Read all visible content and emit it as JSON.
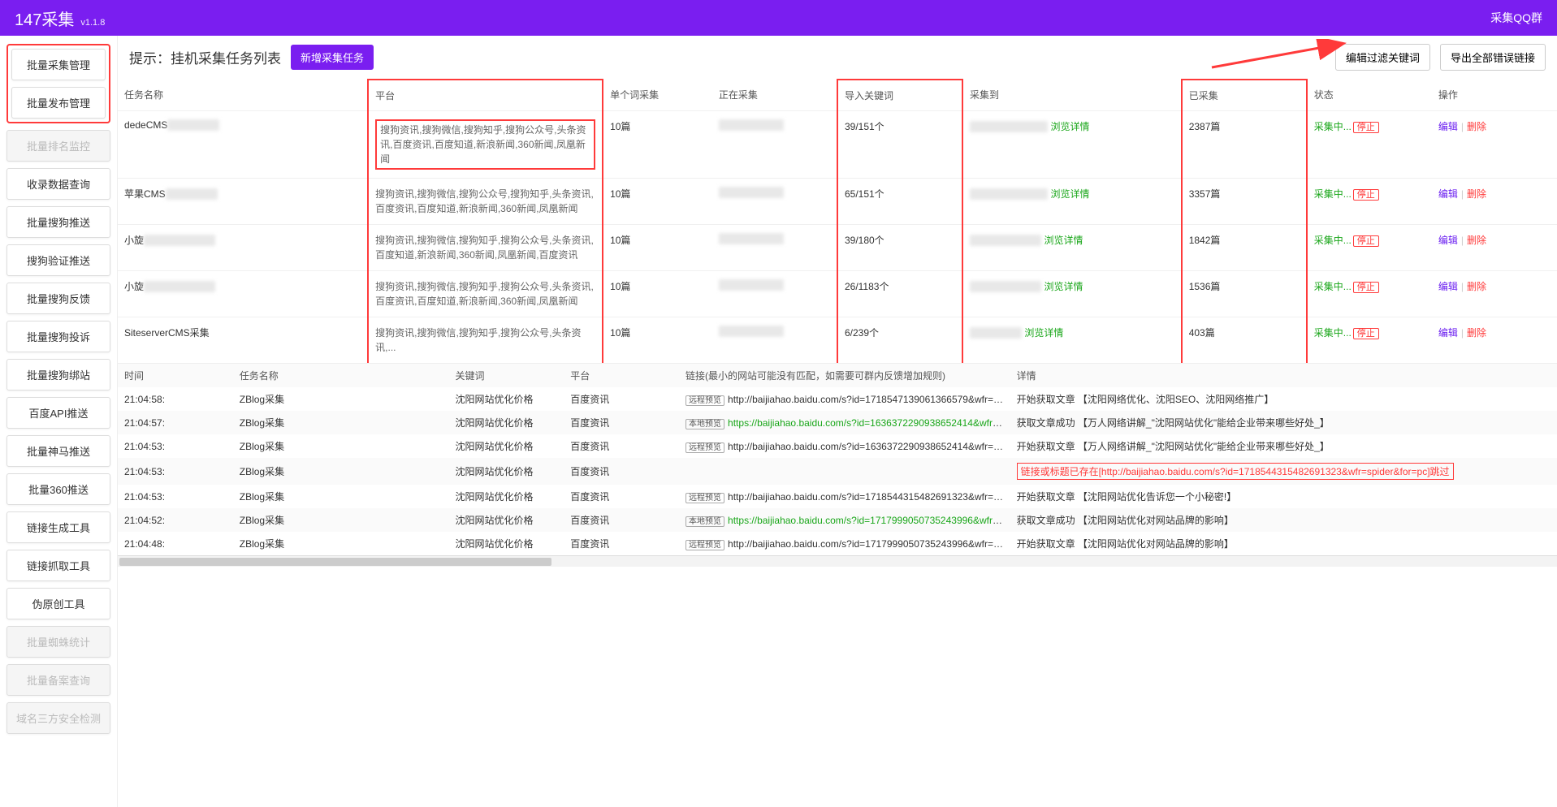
{
  "header": {
    "title": "147采集",
    "version": "v1.1.8",
    "right_link": "采集QQ群"
  },
  "sidebar": {
    "highlighted": [
      "批量采集管理",
      "批量发布管理"
    ],
    "items": [
      {
        "label": "批量排名监控",
        "disabled": true
      },
      {
        "label": "收录数据查询",
        "disabled": false
      },
      {
        "label": "批量搜狗推送",
        "disabled": false
      },
      {
        "label": "搜狗验证推送",
        "disabled": false
      },
      {
        "label": "批量搜狗反馈",
        "disabled": false
      },
      {
        "label": "批量搜狗投诉",
        "disabled": false
      },
      {
        "label": "批量搜狗绑站",
        "disabled": false
      },
      {
        "label": "百度API推送",
        "disabled": false
      },
      {
        "label": "批量神马推送",
        "disabled": false
      },
      {
        "label": "批量360推送",
        "disabled": false
      },
      {
        "label": "链接生成工具",
        "disabled": false
      },
      {
        "label": "链接抓取工具",
        "disabled": false
      },
      {
        "label": "伪原创工具",
        "disabled": false
      },
      {
        "label": "批量蜘蛛统计",
        "disabled": true
      },
      {
        "label": "批量备案查询",
        "disabled": true
      },
      {
        "label": "域名三方安全检测",
        "disabled": true
      }
    ]
  },
  "toolbar": {
    "title": "提示：挂机采集任务列表",
    "new_task": "新增采集任务",
    "filter_btn": "编辑过滤关键词",
    "export_btn": "导出全部错误链接"
  },
  "top_table": {
    "columns": [
      "任务名称",
      "平台",
      "单个词采集",
      "正在采集",
      "导入关键词",
      "采集到",
      "已采集",
      "状态",
      "操作"
    ],
    "col_widths": [
      "16%",
      "15%",
      "7%",
      "8%",
      "8%",
      "14%",
      "8%",
      "8%",
      "8%"
    ],
    "highlight_cols": [
      1,
      4,
      6
    ],
    "rows": [
      {
        "name": "dedeCMS",
        "name_blur": "XXXXXXXX",
        "platform": "搜狗资讯,搜狗微信,搜狗知乎,搜狗公众号,头条资讯,百度资讯,百度知道,新浪新闻,360新闻,凤凰新闻",
        "single": "10篇",
        "doing_blur": "XXXXXXXXXX",
        "keywords": "39/151个",
        "collect_blur": "XXXXXXXXXXXX",
        "collect_link": "浏览详情",
        "collected": "2387篇",
        "status": "采集中...",
        "stop": "停止",
        "edit": "编辑",
        "del": "删除"
      },
      {
        "name": "苹果CMS",
        "name_blur": "XXXXXXXX",
        "platform": "搜狗资讯,搜狗微信,搜狗公众号,搜狗知乎,头条资讯,百度资讯,百度知道,新浪新闻,360新闻,凤凰新闻",
        "single": "10篇",
        "doing_blur": "XXXXXXXXXX",
        "keywords": "65/151个",
        "collect_blur": "XXXXXXXXXXXX",
        "collect_link": "浏览详情",
        "collected": "3357篇",
        "status": "采集中...",
        "stop": "停止",
        "edit": "编辑",
        "del": "删除"
      },
      {
        "name": "小旋",
        "name_blur": "XXXXXXXXXXX",
        "platform": "搜狗资讯,搜狗微信,搜狗知乎,搜狗公众号,头条资讯,百度知道,新浪新闻,360新闻,凤凰新闻,百度资讯",
        "single": "10篇",
        "doing_blur": "XXXXXXXXXX",
        "keywords": "39/180个",
        "collect_blur": "XXXXXXXXXXX",
        "collect_link": "浏览详情",
        "collected": "1842篇",
        "status": "采集中...",
        "stop": "停止",
        "edit": "编辑",
        "del": "删除"
      },
      {
        "name": "小旋",
        "name_blur": "XXXXXXXXXXX",
        "platform": "搜狗资讯,搜狗微信,搜狗知乎,搜狗公众号,头条资讯,百度资讯,百度知道,新浪新闻,360新闻,凤凰新闻",
        "single": "10篇",
        "doing_blur": "XXXXXXXXXX",
        "keywords": "26/1183个",
        "collect_blur": "XXXXXXXXXXX",
        "collect_link": "浏览详情",
        "collected": "1536篇",
        "status": "采集中...",
        "stop": "停止",
        "edit": "编辑",
        "del": "删除"
      },
      {
        "name": "SiteserverCMS采集",
        "name_blur": "",
        "platform": "搜狗资讯,搜狗微信,搜狗知乎,搜狗公众号,头条资讯,...",
        "single": "10篇",
        "doing_blur": "XXXXXXXXXX",
        "keywords": "6/239个",
        "collect_blur": "XXXXXXXX",
        "collect_link": "浏览详情",
        "collected": "403篇",
        "status": "采集中...",
        "stop": "停止",
        "edit": "编辑",
        "del": "删除"
      }
    ]
  },
  "log_table": {
    "columns": [
      "时间",
      "任务名称",
      "关键词",
      "平台",
      "链接(最小的网站可能没有匹配，如需要可群内反馈增加规则)",
      "详情"
    ],
    "col_widths": [
      "8%",
      "15%",
      "8%",
      "8%",
      "23%",
      "38%"
    ],
    "rows": [
      {
        "time": "21:04:58:",
        "task": "ZBlog采集",
        "kw": "沈阳网站优化价格",
        "plat": "百度资讯",
        "tag": "远程预览",
        "url": "http://baijiahao.baidu.com/s?id=1718547139061366579&wfr=s...",
        "url_green": false,
        "detail": "开始获取文章 【沈阳网络优化、沈阳SEO、沈阳网络推广】",
        "detail_red": false
      },
      {
        "time": "21:04:57:",
        "task": "ZBlog采集",
        "kw": "沈阳网站优化价格",
        "plat": "百度资讯",
        "tag": "本地预览",
        "url": "https://baijiahao.baidu.com/s?id=1636372290938652414&wfr=s...",
        "url_green": true,
        "detail": "获取文章成功 【万人网络讲解_\"沈阳网站优化\"能给企业带来哪些好处_】",
        "detail_red": false
      },
      {
        "time": "21:04:53:",
        "task": "ZBlog采集",
        "kw": "沈阳网站优化价格",
        "plat": "百度资讯",
        "tag": "远程预览",
        "url": "http://baijiahao.baidu.com/s?id=1636372290938652414&wfr=s...",
        "url_green": false,
        "detail": "开始获取文章 【万人网络讲解_\"沈阳网站优化\"能给企业带来哪些好处_】",
        "detail_red": false
      },
      {
        "time": "21:04:53:",
        "task": "ZBlog采集",
        "kw": "沈阳网站优化价格",
        "plat": "百度资讯",
        "tag": "",
        "url": "",
        "url_green": false,
        "detail": "链接或标题已存在[http://baijiahao.baidu.com/s?id=1718544315482691323&wfr=spider&for=pc]跳过",
        "detail_red": true
      },
      {
        "time": "21:04:53:",
        "task": "ZBlog采集",
        "kw": "沈阳网站优化价格",
        "plat": "百度资讯",
        "tag": "远程预览",
        "url": "http://baijiahao.baidu.com/s?id=1718544315482691323&wfr=s...",
        "url_green": false,
        "detail": "开始获取文章 【沈阳网站优化告诉您一个小秘密!】",
        "detail_red": false
      },
      {
        "time": "21:04:52:",
        "task": "ZBlog采集",
        "kw": "沈阳网站优化价格",
        "plat": "百度资讯",
        "tag": "本地预览",
        "url": "https://baijiahao.baidu.com/s?id=1717999050735243996&wfr=s...",
        "url_green": true,
        "detail": "获取文章成功 【沈阳网站优化对网站品牌的影响】",
        "detail_red": false
      },
      {
        "time": "21:04:48:",
        "task": "ZBlog采集",
        "kw": "沈阳网站优化价格",
        "plat": "百度资讯",
        "tag": "远程预览",
        "url": "http://baijiahao.baidu.com/s?id=1717999050735243996&wfr=s...",
        "url_green": false,
        "detail": "开始获取文章 【沈阳网站优化对网站品牌的影响】",
        "detail_red": false
      }
    ]
  },
  "colors": {
    "brand": "#7a1ef0",
    "green": "#19a619",
    "red": "#ff3a3a"
  }
}
